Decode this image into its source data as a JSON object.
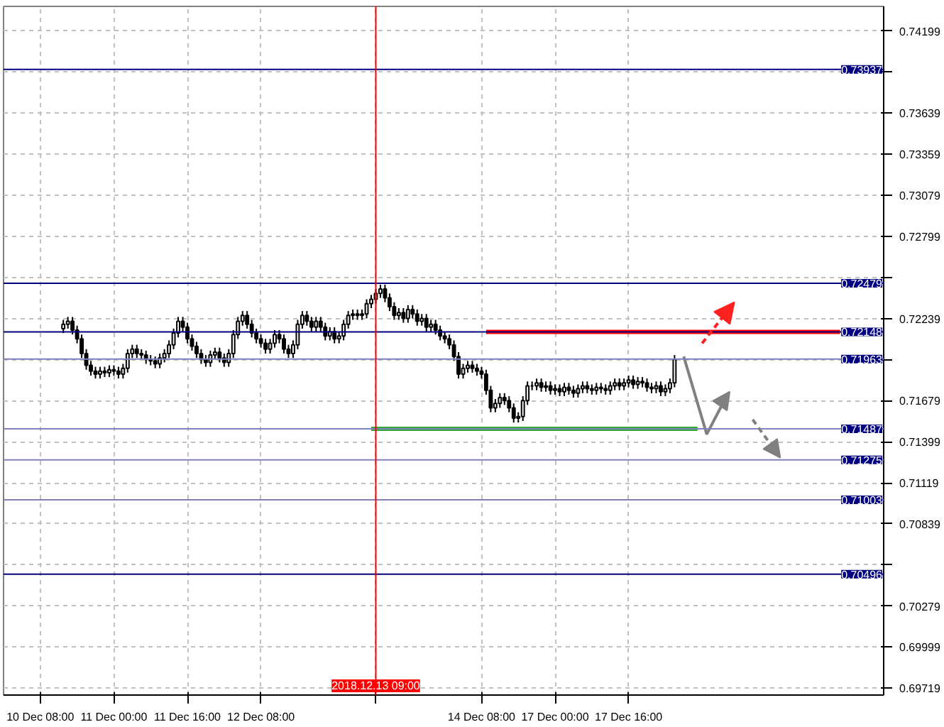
{
  "chart_data": {
    "type": "candlestick",
    "categories": [
      "10 Dec 08:00",
      null,
      null,
      null,
      null,
      null,
      null,
      null,
      null,
      null,
      null,
      null,
      null,
      null,
      null,
      null,
      "11 Dec 00:00",
      null,
      null,
      null,
      null,
      null,
      null,
      null,
      null,
      null,
      null,
      null,
      null,
      null,
      null,
      null,
      "11 Dec 16:00",
      null,
      null,
      null,
      null,
      null,
      null,
      null,
      null,
      null,
      null,
      null,
      null,
      null,
      null,
      null,
      "12 Dec 08:00",
      null,
      null,
      null,
      null,
      null,
      null,
      null,
      null,
      null,
      null,
      null,
      null,
      null,
      null,
      null,
      null,
      null,
      null,
      null,
      null,
      null,
      null,
      null,
      null,
      "2018.12.13 09:00",
      null,
      null,
      null,
      null,
      null,
      null,
      null,
      null,
      null,
      null,
      null,
      null,
      null,
      null,
      null,
      null,
      null,
      null,
      null,
      null,
      null,
      null,
      "14 Dec 08:00",
      null,
      null,
      null,
      null,
      null,
      null,
      null,
      null,
      null,
      null,
      null,
      null,
      null,
      null,
      null,
      "17 Dec 00:00",
      null,
      null,
      null,
      null,
      null,
      null,
      null,
      null,
      null,
      null,
      null,
      null,
      null,
      null,
      null,
      "17 Dec 16:00",
      null,
      null,
      null,
      null,
      null,
      null,
      null,
      null,
      null,
      null,
      null,
      null,
      null,
      null,
      null,
      null,
      null,
      null,
      null,
      null,
      null,
      null,
      null,
      null,
      null,
      null,
      null,
      null,
      null,
      null,
      null,
      null,
      null,
      null,
      null,
      null,
      null,
      null,
      null,
      null,
      null,
      null,
      null,
      null,
      null,
      null,
      null,
      null,
      null,
      null,
      null,
      null,
      null,
      null,
      null
    ],
    "ohlc": [
      null,
      null,
      null,
      null,
      null,
      [
        0.7217,
        0.7223,
        0.7214,
        0.722
      ],
      [
        0.722,
        0.7225,
        0.7217,
        0.7222
      ],
      [
        0.7222,
        0.7225,
        0.7213,
        0.7216
      ],
      [
        0.7216,
        0.7219,
        0.7207,
        0.721
      ],
      [
        0.721,
        0.7213,
        0.7197,
        0.72
      ],
      [
        0.72,
        0.7203,
        0.7189,
        0.7192
      ],
      [
        0.7192,
        0.7195,
        0.7185,
        0.7188
      ],
      [
        0.7188,
        0.7191,
        0.7183,
        0.7186
      ],
      [
        0.7186,
        0.7191,
        0.7183,
        0.7188
      ],
      [
        0.7188,
        0.7191,
        0.7184,
        0.7187
      ],
      [
        0.7187,
        0.7192,
        0.7184,
        0.7189
      ],
      [
        0.7189,
        0.7192,
        0.7185,
        0.7188
      ],
      [
        0.7188,
        0.7191,
        0.7183,
        0.7186
      ],
      [
        0.7186,
        0.7193,
        0.7183,
        0.719
      ],
      [
        0.719,
        0.7203,
        0.7187,
        0.72
      ],
      [
        0.72,
        0.7206,
        0.7197,
        0.7203
      ],
      [
        0.7203,
        0.7206,
        0.7197,
        0.72
      ],
      [
        0.72,
        0.7203,
        0.7196,
        0.7199
      ],
      [
        0.7199,
        0.7202,
        0.7193,
        0.7196
      ],
      [
        0.7196,
        0.7199,
        0.7192,
        0.7195
      ],
      [
        0.7195,
        0.7198,
        0.719,
        0.7193
      ],
      [
        0.7193,
        0.72,
        0.719,
        0.7197
      ],
      [
        0.7197,
        0.7203,
        0.7194,
        0.72
      ],
      [
        0.72,
        0.7209,
        0.7197,
        0.7206
      ],
      [
        0.7206,
        0.7217,
        0.7203,
        0.7214
      ],
      [
        0.7214,
        0.7225,
        0.7211,
        0.7222
      ],
      [
        0.7222,
        0.7225,
        0.7215,
        0.7218
      ],
      [
        0.7218,
        0.7221,
        0.7207,
        0.721
      ],
      [
        0.721,
        0.7213,
        0.7202,
        0.7205
      ],
      [
        0.7205,
        0.7208,
        0.7197,
        0.72
      ],
      [
        0.72,
        0.7203,
        0.7193,
        0.7196
      ],
      [
        0.7196,
        0.7199,
        0.7191,
        0.7194
      ],
      [
        0.7194,
        0.7202,
        0.7191,
        0.7199
      ],
      [
        0.7199,
        0.7204,
        0.7196,
        0.7201
      ],
      [
        0.7201,
        0.7204,
        0.7194,
        0.7197
      ],
      [
        0.7197,
        0.72,
        0.7191,
        0.7194
      ],
      [
        0.7194,
        0.7203,
        0.7191,
        0.72
      ],
      [
        0.72,
        0.7216,
        0.7197,
        0.7213
      ],
      [
        0.7213,
        0.7225,
        0.721,
        0.7222
      ],
      [
        0.7222,
        0.7229,
        0.7219,
        0.7226
      ],
      [
        0.7226,
        0.7229,
        0.7217,
        0.722
      ],
      [
        0.722,
        0.7223,
        0.7211,
        0.7214
      ],
      [
        0.7214,
        0.7217,
        0.7207,
        0.721
      ],
      [
        0.721,
        0.7213,
        0.7204,
        0.7207
      ],
      [
        0.7207,
        0.721,
        0.72,
        0.7203
      ],
      [
        0.7203,
        0.721,
        0.72,
        0.7207
      ],
      [
        0.7207,
        0.7216,
        0.7204,
        0.7213
      ],
      [
        0.7213,
        0.7216,
        0.7207,
        0.721
      ],
      [
        0.721,
        0.7213,
        0.72,
        0.7203
      ],
      [
        0.7203,
        0.7206,
        0.7197,
        0.72
      ],
      [
        0.72,
        0.7209,
        0.7197,
        0.7206
      ],
      [
        0.7206,
        0.7223,
        0.7203,
        0.722
      ],
      [
        0.722,
        0.7229,
        0.7217,
        0.7226
      ],
      [
        0.7226,
        0.7229,
        0.7219,
        0.7222
      ],
      [
        0.7222,
        0.7225,
        0.7215,
        0.7218
      ],
      [
        0.7218,
        0.7225,
        0.7215,
        0.7222
      ],
      [
        0.7222,
        0.7225,
        0.7215,
        0.7218
      ],
      [
        0.7218,
        0.7221,
        0.7209,
        0.7212
      ],
      [
        0.7212,
        0.7218,
        0.7209,
        0.7215
      ],
      [
        0.7215,
        0.7218,
        0.7207,
        0.721
      ],
      [
        0.721,
        0.7215,
        0.7207,
        0.7212
      ],
      [
        0.7212,
        0.7223,
        0.7209,
        0.722
      ],
      [
        0.722,
        0.7229,
        0.7217,
        0.7226
      ],
      [
        0.7226,
        0.723,
        0.7223,
        0.7227
      ],
      [
        0.7227,
        0.723,
        0.7223,
        0.7226
      ],
      [
        0.7226,
        0.723,
        0.7223,
        0.7227
      ],
      [
        0.7227,
        0.7237,
        0.7224,
        0.7234
      ],
      [
        0.7234,
        0.724,
        0.7231,
        0.7237
      ],
      [
        0.7237,
        0.7244,
        0.7234,
        0.7241
      ],
      [
        0.7241,
        0.7247,
        0.7238,
        0.7244
      ],
      [
        0.7244,
        0.7247,
        0.7235,
        0.7238
      ],
      [
        0.7238,
        0.7241,
        0.7229,
        0.7232
      ],
      [
        0.7232,
        0.7235,
        0.7223,
        0.7226
      ],
      [
        0.7226,
        0.7231,
        0.7223,
        0.7228
      ],
      [
        0.7228,
        0.7231,
        0.7221,
        0.7224
      ],
      [
        0.7224,
        0.7233,
        0.7221,
        0.723
      ],
      [
        0.723,
        0.7233,
        0.7224,
        0.7227
      ],
      [
        0.7227,
        0.723,
        0.7219,
        0.7222
      ],
      [
        0.7222,
        0.7227,
        0.7219,
        0.7224
      ],
      [
        0.7224,
        0.7227,
        0.7215,
        0.7218
      ],
      [
        0.7218,
        0.7223,
        0.7215,
        0.722
      ],
      [
        0.722,
        0.7223,
        0.7213,
        0.7216
      ],
      [
        0.7216,
        0.7219,
        0.7209,
        0.7212
      ],
      [
        0.7212,
        0.7215,
        0.7207,
        0.721
      ],
      [
        0.721,
        0.7213,
        0.7203,
        0.7206
      ],
      [
        0.7206,
        0.7209,
        0.7195,
        0.7198
      ],
      [
        0.7198,
        0.7201,
        0.7183,
        0.7186
      ],
      [
        0.7186,
        0.7193,
        0.7183,
        0.719
      ],
      [
        0.719,
        0.7195,
        0.7187,
        0.7192
      ],
      [
        0.7192,
        0.7195,
        0.7187,
        0.719
      ],
      [
        0.719,
        0.7193,
        0.7185,
        0.7188
      ],
      [
        0.7188,
        0.7191,
        0.7183,
        0.7186
      ],
      [
        0.7186,
        0.7189,
        0.7172,
        0.7175
      ],
      [
        0.7175,
        0.7178,
        0.716,
        0.7163
      ],
      [
        0.7163,
        0.7169,
        0.716,
        0.7166
      ],
      [
        0.7166,
        0.7173,
        0.7163,
        0.717
      ],
      [
        0.717,
        0.7173,
        0.7165,
        0.7168
      ],
      [
        0.7168,
        0.7171,
        0.716,
        0.7163
      ],
      [
        0.7163,
        0.7166,
        0.7153,
        0.7156
      ],
      [
        0.7156,
        0.716,
        0.7153,
        0.7157
      ],
      [
        0.7157,
        0.7171,
        0.7154,
        0.7168
      ],
      [
        0.7168,
        0.7181,
        0.7165,
        0.7178
      ],
      [
        0.7178,
        0.7181,
        0.7175,
        0.7178
      ],
      [
        0.7178,
        0.7183,
        0.7175,
        0.718
      ],
      [
        0.718,
        0.7183,
        0.7174,
        0.7177
      ],
      [
        0.7177,
        0.7181,
        0.7174,
        0.7178
      ],
      [
        0.7178,
        0.7181,
        0.7172,
        0.7175
      ],
      [
        0.7175,
        0.7179,
        0.7172,
        0.7176
      ],
      [
        0.7176,
        0.7179,
        0.7171,
        0.7174
      ],
      [
        0.7174,
        0.718,
        0.7171,
        0.7177
      ],
      [
        0.7177,
        0.718,
        0.7172,
        0.7175
      ],
      [
        0.7175,
        0.7178,
        0.717,
        0.7173
      ],
      [
        0.7173,
        0.7179,
        0.717,
        0.7176
      ],
      [
        0.7176,
        0.7181,
        0.7173,
        0.7178
      ],
      [
        0.7178,
        0.7181,
        0.7173,
        0.7176
      ],
      [
        0.7176,
        0.7179,
        0.7172,
        0.7175
      ],
      [
        0.7175,
        0.718,
        0.7172,
        0.7177
      ],
      [
        0.7177,
        0.718,
        0.7173,
        0.7176
      ],
      [
        0.7176,
        0.7179,
        0.7172,
        0.7175
      ],
      [
        0.7175,
        0.7181,
        0.7172,
        0.7178
      ],
      [
        0.7178,
        0.7183,
        0.7175,
        0.718
      ],
      [
        0.718,
        0.7183,
        0.7175,
        0.7178
      ],
      [
        0.7178,
        0.7183,
        0.7175,
        0.718
      ],
      [
        0.718,
        0.7185,
        0.7177,
        0.7182
      ],
      [
        0.7182,
        0.7185,
        0.7176,
        0.7179
      ],
      [
        0.7179,
        0.7184,
        0.7176,
        0.7181
      ],
      [
        0.7181,
        0.7184,
        0.7177,
        0.718
      ],
      [
        0.718,
        0.7183,
        0.7174,
        0.7177
      ],
      [
        0.7177,
        0.718,
        0.7173,
        0.7176
      ],
      [
        0.7176,
        0.7181,
        0.7173,
        0.7178
      ],
      [
        0.7178,
        0.7181,
        0.7171,
        0.7174
      ],
      [
        0.7174,
        0.7179,
        0.7171,
        0.7176
      ],
      [
        0.7176,
        0.7183,
        0.7173,
        0.718
      ],
      [
        0.718,
        0.7199,
        0.7177,
        0.7196
      ],
      null,
      null,
      null,
      null,
      null,
      null,
      null,
      null,
      null,
      null,
      null,
      null,
      null,
      null,
      null,
      null,
      null,
      null,
      null,
      null,
      null,
      null,
      null,
      null,
      null,
      null,
      null,
      null,
      null,
      null,
      null,
      null,
      null,
      null,
      null,
      null,
      null,
      null,
      null,
      null,
      null,
      null,
      null,
      null,
      null
    ],
    "series": [
      {
        "type": "line",
        "color": "#ff0000",
        "values": [
          null,
          null,
          null,
          null,
          null,
          null,
          null,
          null,
          null,
          null,
          null,
          null,
          null,
          null,
          null,
          null,
          null,
          null,
          null,
          null,
          null,
          null,
          null,
          null,
          null,
          null,
          null,
          null,
          null,
          null,
          null,
          null,
          null,
          null,
          null,
          null,
          null,
          null,
          null,
          null,
          null,
          null,
          null,
          null,
          null,
          null,
          null,
          null,
          null,
          null,
          null,
          null,
          null,
          null,
          null,
          null,
          null,
          null,
          null,
          null,
          null,
          null,
          null,
          null,
          null,
          null,
          null,
          null,
          null,
          null,
          null,
          null,
          null,
          null,
          null,
          null,
          null,
          null,
          null,
          null,
          null,
          null,
          null,
          null,
          null,
          null,
          null,
          null,
          null,
          null,
          null,
          null,
          null,
          null,
          null,
          null,
          null,
          0.72148,
          0.72148,
          0.72148,
          0.72148,
          0.72148,
          0.72148,
          0.72148,
          0.72148,
          0.72148,
          0.72148,
          0.72148,
          0.72148,
          0.72148,
          0.72148,
          0.72148,
          0.72148,
          0.72148,
          0.72148,
          0.72148,
          0.72148,
          0.72148,
          0.72148,
          0.72148,
          0.72148,
          0.72148,
          0.72148,
          0.72148,
          0.72148,
          0.72148,
          0.72148,
          0.72148,
          0.72148,
          0.72148,
          0.72148,
          0.72148,
          0.72148,
          0.72148,
          0.72148,
          0.72148,
          0.72148,
          0.72148,
          0.72148,
          0.72148,
          0.72148,
          0.72148,
          0.72148,
          0.72148,
          0.72148,
          0.72148,
          0.72148,
          0.72148,
          0.72148,
          0.72148,
          0.72148,
          0.72148,
          0.72148,
          0.72148,
          0.72148,
          0.72148,
          0.72148,
          0.72148,
          0.72148,
          0.72148,
          0.72148,
          0.72148,
          0.72148,
          0.72148,
          0.72148,
          0.72148,
          0.72148,
          0.72148,
          0.72148,
          0.72148,
          0.72148,
          0.72148,
          0.72148,
          0.72148,
          0.72148,
          null,
          null,
          null,
          null,
          null,
          null,
          null,
          null,
          null
        ]
      },
      {
        "type": "line",
        "color": "#33aa33",
        "values": [
          null,
          null,
          null,
          null,
          null,
          null,
          null,
          null,
          null,
          null,
          null,
          null,
          null,
          null,
          null,
          null,
          null,
          null,
          null,
          null,
          null,
          null,
          null,
          null,
          null,
          null,
          null,
          null,
          null,
          null,
          null,
          null,
          null,
          null,
          null,
          null,
          null,
          null,
          null,
          null,
          null,
          null,
          null,
          null,
          null,
          null,
          null,
          null,
          null,
          null,
          null,
          null,
          null,
          null,
          null,
          null,
          null,
          null,
          null,
          null,
          null,
          null,
          null,
          null,
          null,
          null,
          null,
          null,
          null,
          null,
          null,
          null,
          0.71487,
          0.71487,
          0.71487,
          0.71487,
          0.71487,
          0.71487,
          0.71487,
          0.71487,
          0.71487,
          0.71487,
          0.71487,
          0.71487,
          0.71487,
          0.71487,
          0.71487,
          0.71487,
          0.71487,
          0.71487,
          0.71487,
          0.71487,
          0.71487,
          0.71487,
          0.71487,
          0.71487,
          0.71487,
          0.71487,
          0.71487,
          0.71487,
          0.71487,
          0.71487,
          0.71487,
          0.71487,
          0.71487,
          0.71487,
          0.71487,
          0.71487,
          0.71487,
          0.71487,
          0.71487,
          0.71487,
          0.71487,
          0.71487,
          0.71487,
          0.71487,
          0.71487,
          0.71487,
          0.71487,
          0.71487,
          0.71487,
          0.71487,
          0.71487,
          0.71487,
          0.71487,
          0.71487,
          0.71487,
          0.71487,
          0.71487,
          0.71487,
          0.71487,
          0.71487,
          0.71487,
          0.71487,
          0.71487,
          0.71487,
          0.71487,
          0.71487,
          0.71487,
          0.71487,
          0.71487,
          0.71487,
          0.71487,
          0.71487,
          null,
          null,
          null,
          null,
          null,
          null,
          null,
          null,
          null,
          null,
          null,
          null,
          null,
          null,
          null,
          null,
          null,
          null,
          null,
          null,
          null,
          null,
          null,
          null,
          null,
          null,
          null,
          null,
          null,
          null,
          null,
          null,
          null,
          null,
          null,
          null,
          null,
          null,
          null,
          null
        ]
      }
    ],
    "ylim": [
      0.69672,
      0.74367
    ],
    "yticks": [
      0.74199,
      {
        "value": 0.73919,
        "label": null
      },
      0.73639,
      0.73359,
      0.73079,
      0.72799,
      {
        "value": 0.72519,
        "label": null
      },
      0.72239,
      {
        "value": 0.71959,
        "label": null
      },
      0.71679,
      0.71399,
      0.71119,
      0.70839,
      {
        "value": 0.70559,
        "label": null
      },
      0.70279,
      0.69999,
      0.69719
    ],
    "grid": true,
    "ref_lines": [
      {
        "axis": "y",
        "value": 0.73937,
        "label": "0.73937",
        "color": "#000080"
      },
      {
        "axis": "y",
        "value": 0.72479,
        "label": "0.72479",
        "color": "#000080"
      },
      {
        "axis": "y",
        "value": 0.72148,
        "label": "0.72148",
        "color": "#000080"
      },
      {
        "axis": "y",
        "value": 0.71963,
        "label": "0.71963",
        "color": "#8080c0"
      },
      {
        "axis": "y",
        "value": 0.71487,
        "label": "0.71487",
        "color": "#8080c0"
      },
      {
        "axis": "y",
        "value": 0.71275,
        "label": "0.71275",
        "color": "#8080c0"
      },
      {
        "axis": "y",
        "value": 0.71003,
        "label": "0.71003",
        "color": "#8080c0"
      },
      {
        "axis": "y",
        "value": 0.70496,
        "label": "0.70496",
        "color": "#000080"
      },
      {
        "axis": "x",
        "value": "2018.12.13 09:00",
        "color": "#ff0000"
      }
    ]
  }
}
